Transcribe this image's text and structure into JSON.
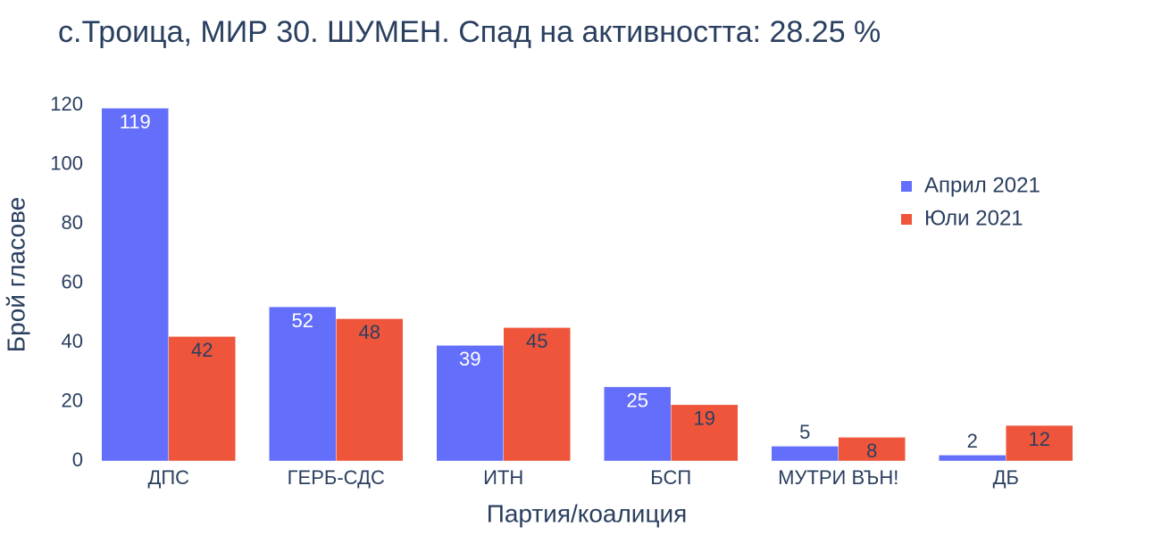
{
  "chart_data": {
    "type": "bar",
    "title": "с.Троица, МИР 30. ШУМЕН. Спад на активността: 28.25 %",
    "x_label": "Партия/коалиция",
    "y_label": "Брой гласове",
    "categories": [
      "ДПС",
      "ГЕРБ-СДС",
      "ИТН",
      "БСП",
      "МУТРИ ВЪН!",
      "ДБ"
    ],
    "series": [
      {
        "name": "Април 2021",
        "color": "#636efa",
        "values": [
          119,
          52,
          39,
          25,
          5,
          2
        ]
      },
      {
        "name": "Юли 2021",
        "color": "#ef553b",
        "values": [
          42,
          48,
          45,
          19,
          8,
          12
        ]
      }
    ],
    "ylim": [
      0,
      120
    ],
    "yticks": [
      0,
      20,
      40,
      60,
      80,
      100,
      120
    ],
    "grid": false,
    "legend": "top-right"
  }
}
